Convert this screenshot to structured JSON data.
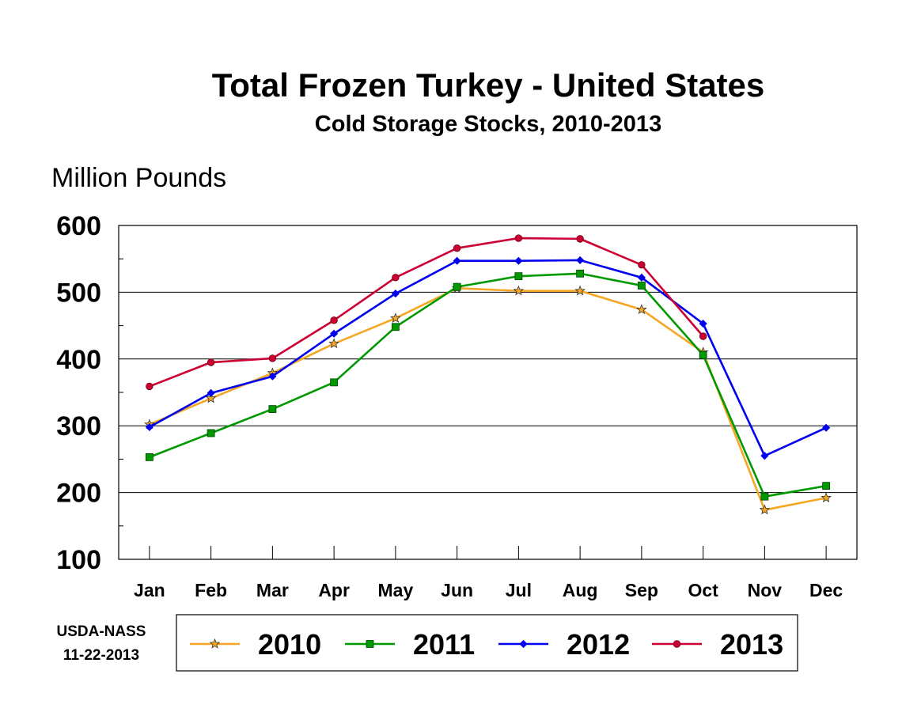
{
  "chart_data": {
    "type": "line",
    "title": "Total Frozen Turkey - United States",
    "subtitle": "Cold Storage Stocks, 2010-2013",
    "ylabel": "Million Pounds",
    "xlabel": "",
    "categories": [
      "Jan",
      "Feb",
      "Mar",
      "Apr",
      "May",
      "Jun",
      "Jul",
      "Aug",
      "Sep",
      "Oct",
      "Nov",
      "Dec"
    ],
    "ylim": [
      100,
      600
    ],
    "yticks": [
      100,
      200,
      300,
      400,
      500,
      600
    ],
    "grid": true,
    "legend_position": "bottom",
    "series": [
      {
        "name": "2010",
        "color": "#F5A623",
        "marker": "star",
        "values": [
          302,
          341,
          379,
          423,
          461,
          506,
          502,
          502,
          474,
          410,
          174,
          192
        ]
      },
      {
        "name": "2011",
        "color": "#009900",
        "marker": "square",
        "values": [
          253,
          289,
          325,
          365,
          448,
          508,
          524,
          528,
          510,
          406,
          194,
          210
        ]
      },
      {
        "name": "2012",
        "color": "#0000EE",
        "marker": "diamond",
        "values": [
          298,
          349,
          374,
          438,
          498,
          547,
          547,
          548,
          522,
          453,
          255,
          297
        ]
      },
      {
        "name": "2013",
        "color": "#CC0033",
        "marker": "circle",
        "values": [
          359,
          395,
          401,
          458,
          522,
          566,
          581,
          580,
          541,
          434,
          null,
          null
        ]
      }
    ]
  },
  "source": {
    "agency": "USDA-NASS",
    "date": "11-22-2013"
  }
}
